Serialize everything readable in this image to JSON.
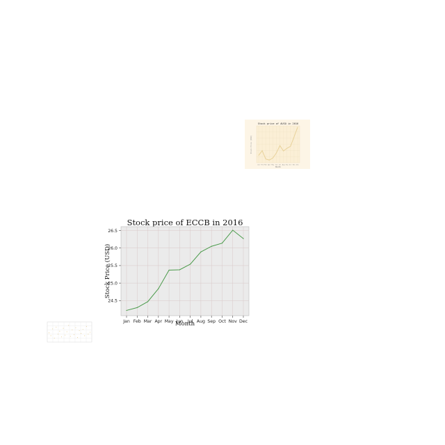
{
  "chart_data": [
    {
      "type": "line",
      "title": "Stock price of ECCB in 2016",
      "xlabel": "Month",
      "ylabel": "Stock Price (USD)",
      "categories": [
        "Jan",
        "Feb",
        "Mar",
        "Apr",
        "May",
        "Jun",
        "Jul",
        "Aug",
        "Sep",
        "Oct",
        "Nov",
        "Dec"
      ],
      "series": [
        {
          "values": [
            24.22,
            24.3,
            24.47,
            24.84,
            25.37,
            25.38,
            25.54,
            25.89,
            26.05,
            26.14,
            26.51,
            26.27
          ]
        }
      ],
      "ylim": [
        24.07,
        26.61
      ],
      "yticks": [
        "24.5",
        "25.0",
        "25.5",
        "26.0",
        "26.5"
      ],
      "grid": true,
      "colors": {
        "line": "#4a9a4a",
        "plot_bg": "#ebebeb",
        "grid": "#d8c8c8"
      }
    },
    {
      "type": "line",
      "title": "Stock price of AUSO in 2016",
      "xlabel": "Month",
      "ylabel": "Stock Price (USD)",
      "categories": [
        "Jan",
        "Feb",
        "Mar",
        "Apr",
        "May",
        "Jun",
        "Jul",
        "Aug",
        "Sep",
        "Oct",
        "Nov",
        "Dec"
      ],
      "series": [
        {
          "values": [
            3.2,
            4.6,
            2.1,
            1.8,
            2.4,
            3.9,
            6.1,
            4.5,
            5.3,
            5.9,
            8.7,
            11.6
          ]
        }
      ],
      "ylim": [
        1.0,
        12.0
      ],
      "grid": true,
      "colors": {
        "line": "#e8d29a",
        "plot_bg": "#fbefd6",
        "figure_bg": "#fdf5e6",
        "grid": "#efe1c2"
      }
    },
    {
      "type": "scatter",
      "title": "",
      "xlabel": "",
      "ylabel": "",
      "series": [
        {
          "x": [
            1,
            2,
            3,
            4,
            5,
            6,
            7,
            8,
            9,
            10,
            11,
            12,
            13,
            14,
            15,
            16,
            17,
            18,
            19,
            20,
            21,
            22,
            23,
            24
          ],
          "y": [
            3.1,
            2.6,
            3.8,
            2.2,
            4.1,
            2.9,
            3.4,
            2.4,
            3.9,
            2.7,
            3.3,
            4.4,
            2.5,
            3.6,
            2.8,
            4.0,
            2.3,
            3.5,
            3.0,
            3.7,
            2.6,
            4.2,
            2.9,
            3.2
          ]
        }
      ],
      "grid": true,
      "colors": {
        "points": "#e0c070",
        "plot_bg": "#ffffff",
        "grid": "#dddddd"
      }
    }
  ]
}
